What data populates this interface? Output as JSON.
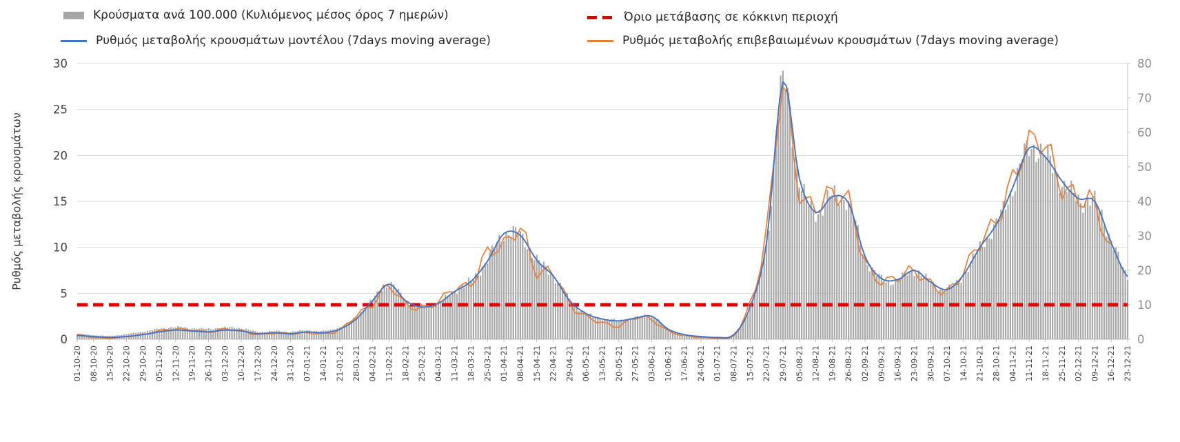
{
  "legend": {
    "bars": "Κρούσματα ανά 100.000 (Κυλιόμενος μέσος όρος 7 ημερών)",
    "threshold": "Όριο μετάβασης σε κόκκινη περιοχή",
    "model": "Ρυθμός μεταβολής κρουσμάτων μοντέλου (7days moving average)",
    "confirmed": "Ρυθμός μεταβολής επιβεβαιωμένων κρουσμάτων (7days moving average)"
  },
  "y_axis_title": "Ρυθμός μεταβολής κρουσμάτων",
  "colors": {
    "bars": "#a8a8a8",
    "model": "#4472c4",
    "confirmed": "#ed7d31",
    "threshold": "#e10000",
    "grid": "#d9d9d9",
    "axis": "#bfbfbf",
    "left_tick_text": "#404040",
    "right_tick_text": "#8e8e8e",
    "x_tick_text": "#454545"
  },
  "chart_data": {
    "type": "bar+line",
    "title": "",
    "xlabel": "",
    "ylabel": "Ρυθμός μεταβολής κρουσμάτων",
    "legend_position": "top",
    "grid": true,
    "categories": [
      "01-10-20",
      "08-10-20",
      "15-10-20",
      "22-10-20",
      "29-10-20",
      "05-11-20",
      "12-11-20",
      "19-11-20",
      "26-11-20",
      "03-12-20",
      "10-12-20",
      "17-12-20",
      "24-12-20",
      "31-12-20",
      "07-01-21",
      "14-01-21",
      "21-01-21",
      "28-01-21",
      "04-02-21",
      "11-02-21",
      "18-02-21",
      "25-02-21",
      "04-03-21",
      "11-03-21",
      "18-03-21",
      "25-03-21",
      "01-04-21",
      "08-04-21",
      "15-04-21",
      "22-04-21",
      "29-04-21",
      "06-05-21",
      "13-05-21",
      "20-05-21",
      "27-05-21",
      "03-06-21",
      "10-06-21",
      "17-06-21",
      "24-06-21",
      "01-07-21",
      "08-07-21",
      "15-07-21",
      "22-07-21",
      "29-07-21",
      "05-08-21",
      "12-08-21",
      "19-08-21",
      "26-08-21",
      "02-09-21",
      "09-09-21",
      "16-09-21",
      "23-09-21",
      "30-09-21",
      "07-10-21",
      "14-10-21",
      "21-10-21",
      "28-10-21",
      "04-11-21",
      "11-11-21",
      "18-11-21",
      "25-11-21",
      "02-12-21",
      "09-12-21",
      "16-12-21",
      "23-12-21"
    ],
    "left_axis": {
      "min": 0,
      "max": 30,
      "ticks": [
        0,
        5,
        10,
        15,
        20,
        25,
        30
      ]
    },
    "right_axis": {
      "min": 0,
      "max": 80,
      "ticks": [
        0,
        10,
        20,
        30,
        40,
        50,
        60,
        70,
        80
      ]
    },
    "threshold": {
      "axis": "right",
      "value": 10,
      "label": "Όριο μετάβασης σε κόκκινη περιοχή"
    },
    "series": [
      {
        "name": "Κρούσματα ανά 100.000 (Κυλιόμενος μέσος όρος 7 ημερών)",
        "type": "bar",
        "axis": "right",
        "values": [
          1.5,
          1.2,
          1.0,
          1.5,
          2.2,
          3.0,
          3.5,
          3.2,
          3.0,
          3.4,
          3.2,
          2.2,
          2.4,
          2.2,
          2.6,
          2.4,
          3.5,
          6.5,
          11.5,
          16.0,
          11.5,
          9.5,
          10.5,
          14.0,
          17.0,
          23.0,
          30.5,
          30.0,
          23.0,
          18.5,
          11.5,
          7.5,
          6.0,
          5.5,
          6.2,
          6.8,
          3.0,
          1.4,
          0.8,
          0.6,
          1.4,
          9.5,
          28.0,
          74.0,
          46.0,
          37.0,
          41.5,
          39.5,
          24.0,
          17.5,
          17.3,
          20.0,
          16.5,
          14.4,
          18.7,
          26.7,
          33.3,
          44.0,
          55.5,
          53.0,
          45.5,
          40.5,
          39.7,
          29.0,
          18.0
        ]
      },
      {
        "name": "Ρυθμός μεταβολής κρουσμάτων μοντέλου (7days moving average)",
        "type": "line",
        "axis": "left",
        "values": [
          0.4,
          0.3,
          0.2,
          0.3,
          0.5,
          0.8,
          1.0,
          0.9,
          0.8,
          1.0,
          0.9,
          0.6,
          0.7,
          0.6,
          0.8,
          0.7,
          1.1,
          2.2,
          4.2,
          6.0,
          4.2,
          3.5,
          3.9,
          5.2,
          6.3,
          8.5,
          11.5,
          11.3,
          8.6,
          6.9,
          4.2,
          2.8,
          2.2,
          2.0,
          2.3,
          2.5,
          1.1,
          0.5,
          0.3,
          0.2,
          0.5,
          3.5,
          10.5,
          28.0,
          17.5,
          13.8,
          15.5,
          14.8,
          9.0,
          6.6,
          6.5,
          7.5,
          6.2,
          5.4,
          7.0,
          10.0,
          12.5,
          16.5,
          20.8,
          19.8,
          17.2,
          15.3,
          15.0,
          10.5,
          6.8
        ]
      },
      {
        "name": "Ρυθμός μεταβολής επιβεβαιωμένων κρουσμάτων (7days moving average)",
        "type": "line",
        "axis": "left",
        "values": [
          0.5,
          0.2,
          0.1,
          0.3,
          0.5,
          0.9,
          1.1,
          1.0,
          0.8,
          1.1,
          0.9,
          0.5,
          0.7,
          0.6,
          0.7,
          0.6,
          1.0,
          2.6,
          3.8,
          5.8,
          3.8,
          3.4,
          4.1,
          5.6,
          6.0,
          9.5,
          10.2,
          12.0,
          7.2,
          7.4,
          3.8,
          2.5,
          1.8,
          1.4,
          2.4,
          2.1,
          0.9,
          0.4,
          0.2,
          0.1,
          0.4,
          3.9,
          11.5,
          27.4,
          16.0,
          14.6,
          15.8,
          14.9,
          8.4,
          6.3,
          6.8,
          7.4,
          6.0,
          5.2,
          7.4,
          10.6,
          12.9,
          17.3,
          21.4,
          21.0,
          16.6,
          15.4,
          14.6,
          9.5,
          null
        ]
      }
    ]
  }
}
